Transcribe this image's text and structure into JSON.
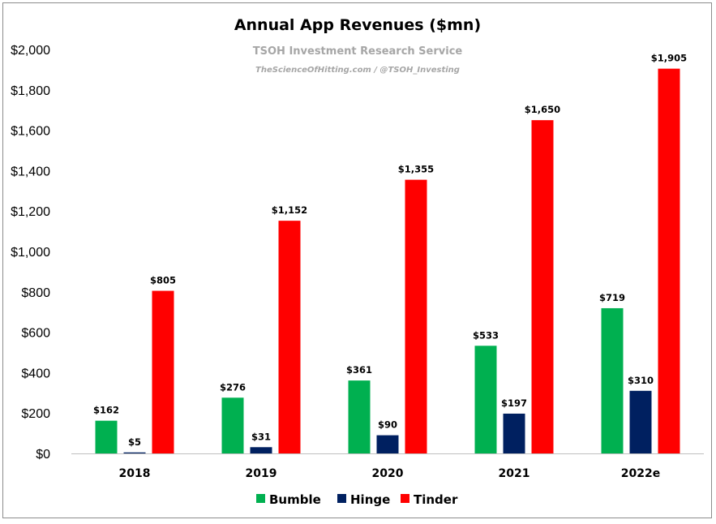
{
  "chart_data": {
    "type": "bar",
    "title": "Annual App Revenues ($mn)",
    "watermark_line1": "TSOH Investment Research Service",
    "watermark_line2": "TheScienceOfHitting.com / @TSOH_Investing",
    "categories": [
      "2018",
      "2019",
      "2020",
      "2021",
      "2022e"
    ],
    "series": [
      {
        "name": "Bumble",
        "color": "#00b050",
        "values": [
          162,
          276,
          361,
          533,
          719
        ],
        "labels": [
          "$162",
          "$276",
          "$361",
          "$533",
          "$719"
        ]
      },
      {
        "name": "Hinge",
        "color": "#002060",
        "values": [
          5,
          31,
          90,
          197,
          310
        ],
        "labels": [
          "$5",
          "$31",
          "$90",
          "$197",
          "$310"
        ]
      },
      {
        "name": "Tinder",
        "color": "#ff0000",
        "values": [
          805,
          1152,
          1355,
          1650,
          1905
        ],
        "labels": [
          "$805",
          "$1,152",
          "$1,355",
          "$1,650",
          "$1,905"
        ]
      }
    ],
    "ylim": [
      0,
      2000
    ],
    "yticks": [
      0,
      200,
      400,
      600,
      800,
      1000,
      1200,
      1400,
      1600,
      1800,
      2000
    ],
    "ytick_labels": [
      "$0",
      "$200",
      "$400",
      "$600",
      "$800",
      "$1,000",
      "$1,200",
      "$1,400",
      "$1,600",
      "$1,800",
      "$2,000"
    ],
    "xlabel": "",
    "ylabel": "",
    "grid": false,
    "legend_position": "bottom"
  }
}
